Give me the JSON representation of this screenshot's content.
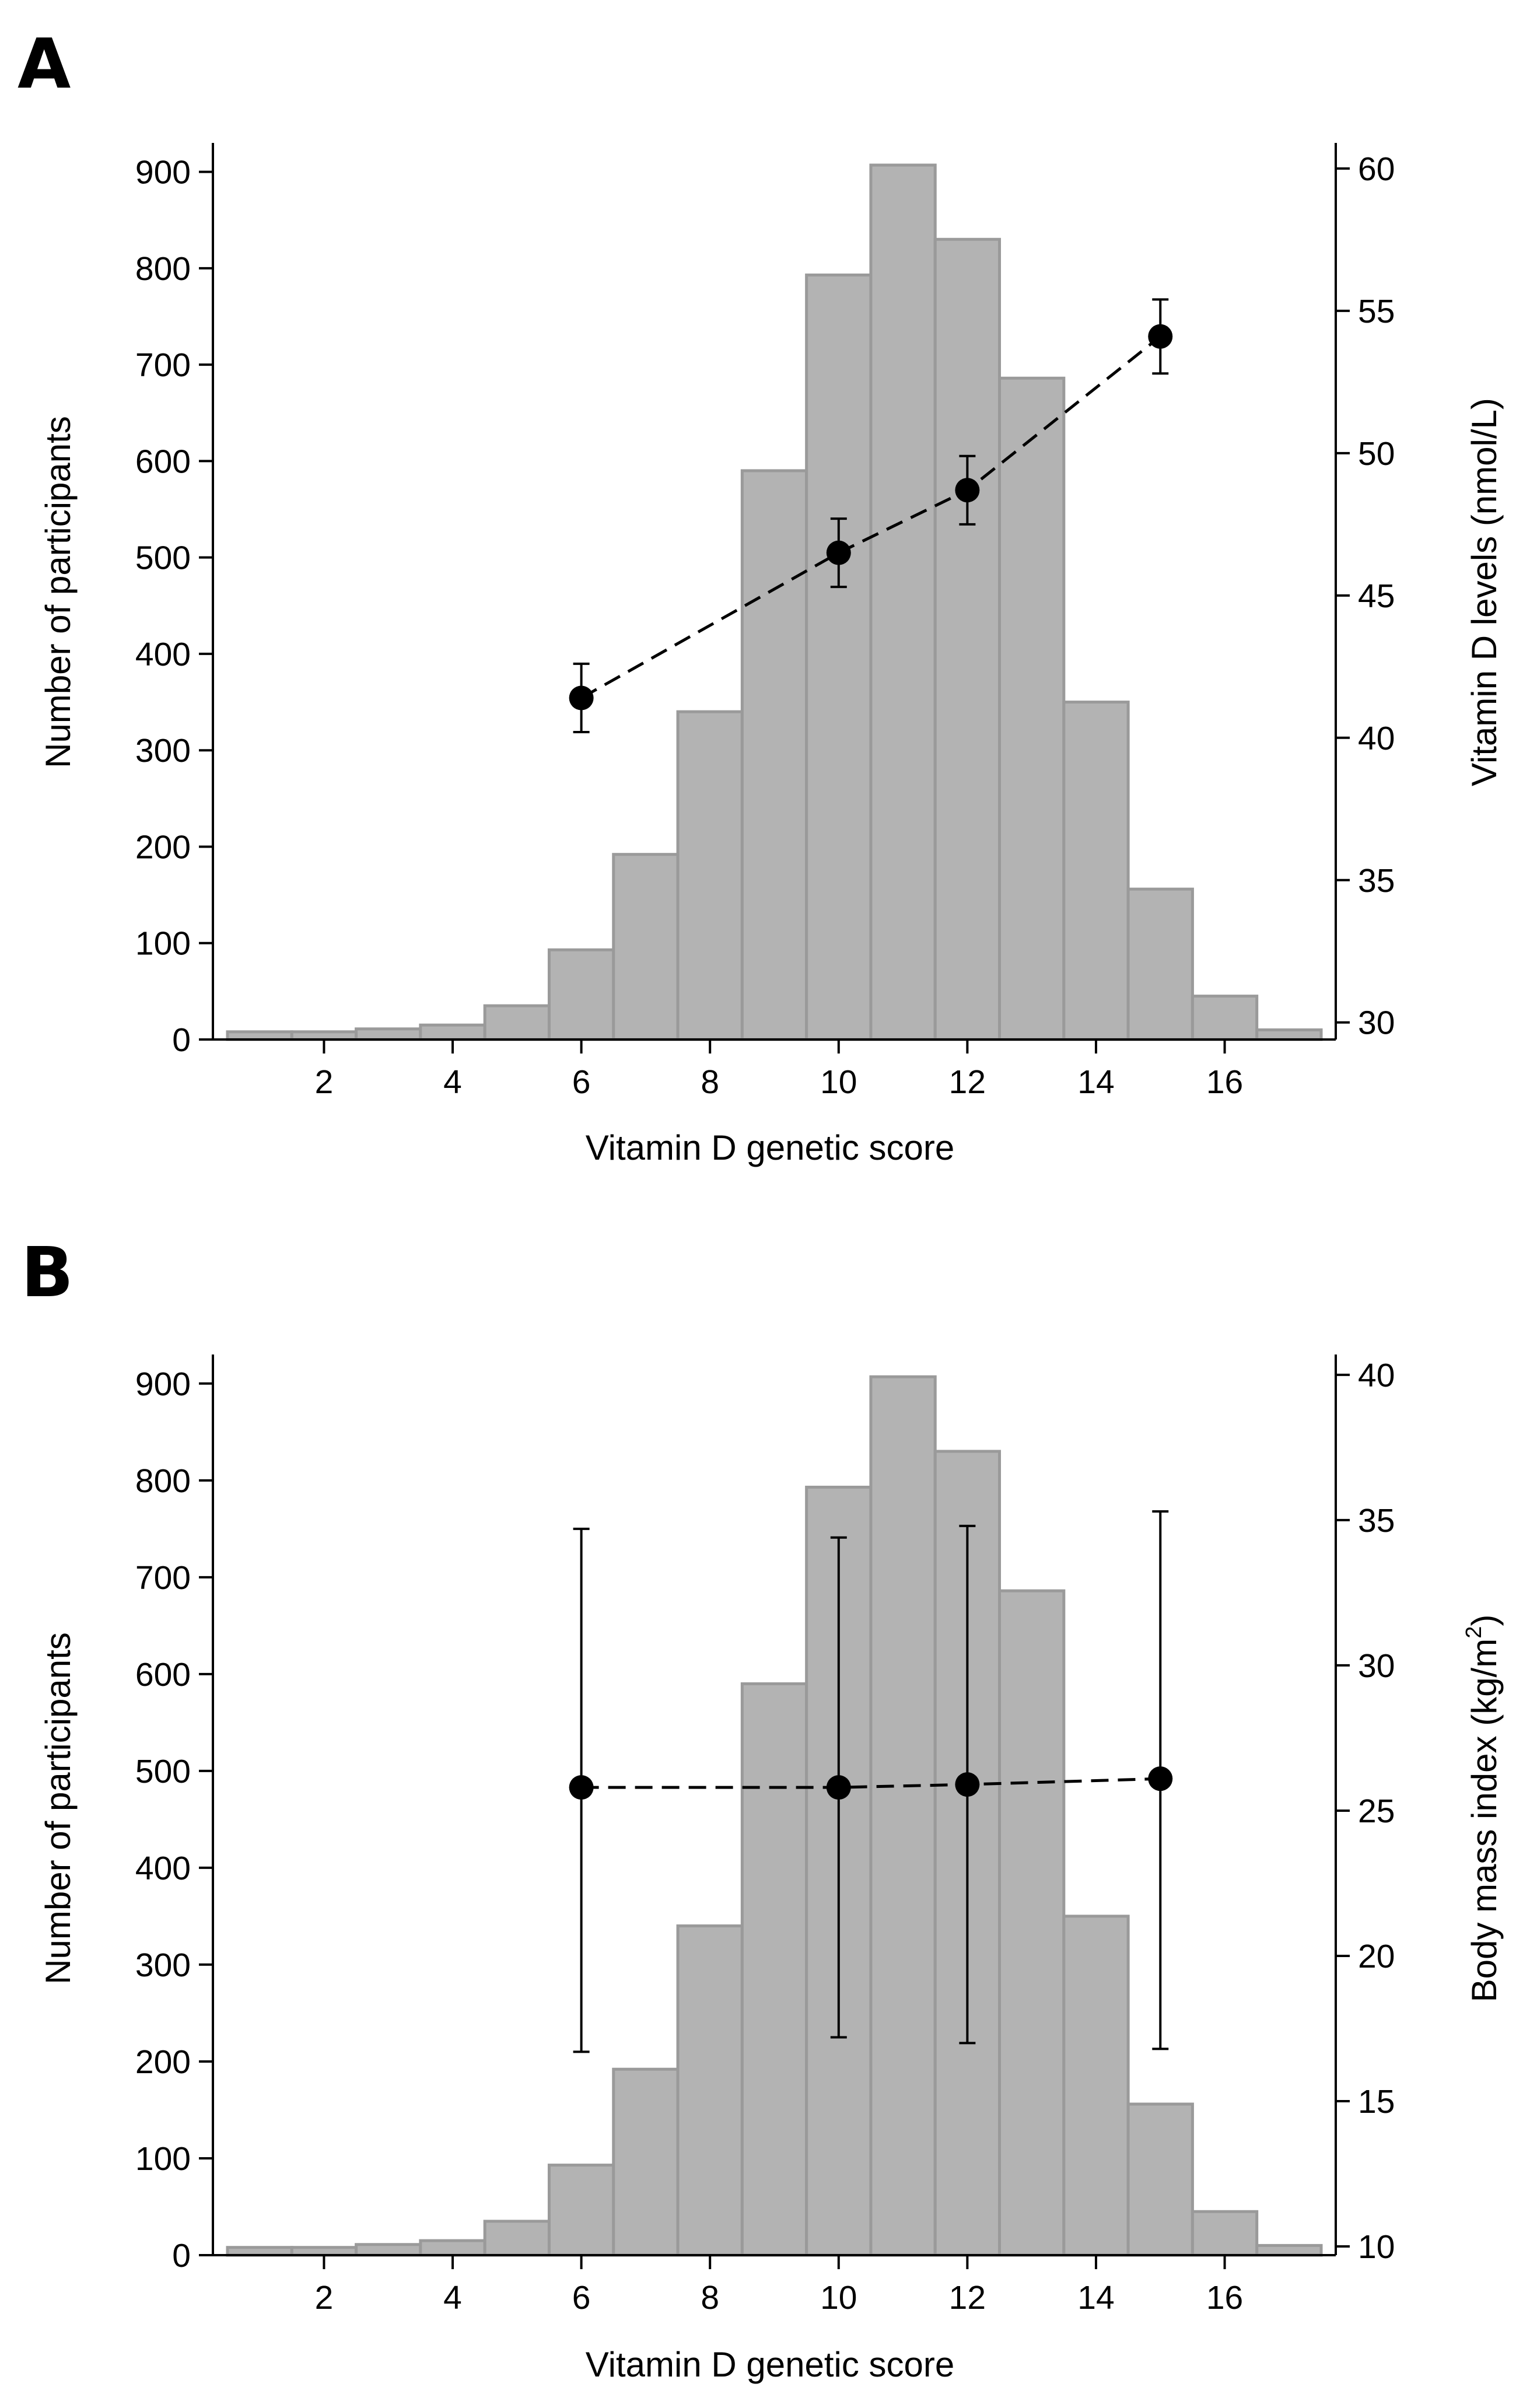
{
  "figure": {
    "colors": {
      "bar_fill": "#b3b3b3",
      "bar_stroke": "#9a9a9a",
      "marker": "#000000",
      "line": "#000000",
      "axis": "#000000"
    }
  },
  "chart_data": [
    {
      "panel": "A",
      "type": "bar",
      "title": "",
      "xlabel": "Vitamin D genetic score",
      "ylabel": "Number of participants",
      "y2label": "Vitamin D levels (nmol/L)",
      "xlim": [
        0.5,
        17.5
      ],
      "ylim": [
        0,
        930
      ],
      "y2lim": [
        29.4,
        60.9
      ],
      "xticks": [
        2,
        4,
        6,
        8,
        10,
        12,
        14,
        16
      ],
      "yticks": [
        0,
        100,
        200,
        300,
        400,
        500,
        600,
        700,
        800,
        900
      ],
      "y2ticks": [
        30,
        35,
        40,
        45,
        50,
        55,
        60
      ],
      "grid": false,
      "histogram": {
        "bin_width": 1,
        "x": [
          1,
          2,
          3,
          4,
          5,
          6,
          7,
          8,
          9,
          10,
          11,
          12,
          13,
          14,
          15,
          16,
          17
        ],
        "counts": [
          8,
          8,
          11,
          15,
          35,
          93,
          192,
          340,
          590,
          793,
          907,
          830,
          686,
          350,
          156,
          45,
          10
        ]
      },
      "series": [
        {
          "type": "line",
          "style": "dashed",
          "marker": "circle",
          "axis": "right",
          "x": [
            6,
            10,
            12,
            15
          ],
          "y": [
            41.4,
            46.5,
            48.7,
            54.1
          ],
          "error_low": [
            40.2,
            45.3,
            47.5,
            52.8
          ],
          "error_high": [
            42.6,
            47.7,
            49.9,
            55.4
          ]
        }
      ]
    },
    {
      "panel": "B",
      "type": "bar",
      "title": "",
      "xlabel": "Vitamin D genetic score",
      "ylabel": "Number of participants",
      "y2label_main": "Body mass index (kg/m",
      "y2label_sup": "2",
      "y2label_end": ")",
      "xlim": [
        0.5,
        17.5
      ],
      "ylim": [
        0,
        930
      ],
      "y2lim": [
        9.7,
        40.7
      ],
      "xticks": [
        2,
        4,
        6,
        8,
        10,
        12,
        14,
        16
      ],
      "yticks": [
        0,
        100,
        200,
        300,
        400,
        500,
        600,
        700,
        800,
        900
      ],
      "y2ticks": [
        10,
        15,
        20,
        25,
        30,
        35,
        40
      ],
      "grid": false,
      "histogram": {
        "bin_width": 1,
        "x": [
          1,
          2,
          3,
          4,
          5,
          6,
          7,
          8,
          9,
          10,
          11,
          12,
          13,
          14,
          15,
          16,
          17
        ],
        "counts": [
          8,
          8,
          11,
          15,
          35,
          93,
          192,
          340,
          590,
          793,
          907,
          830,
          686,
          350,
          156,
          45,
          10
        ]
      },
      "series": [
        {
          "type": "line",
          "style": "dashed",
          "marker": "circle",
          "axis": "right",
          "x": [
            6,
            10,
            12,
            15
          ],
          "y": [
            25.8,
            25.8,
            25.9,
            26.1
          ],
          "error_low": [
            16.7,
            17.2,
            17.0,
            16.8
          ],
          "error_high": [
            34.7,
            34.4,
            34.8,
            35.3
          ]
        }
      ]
    }
  ]
}
